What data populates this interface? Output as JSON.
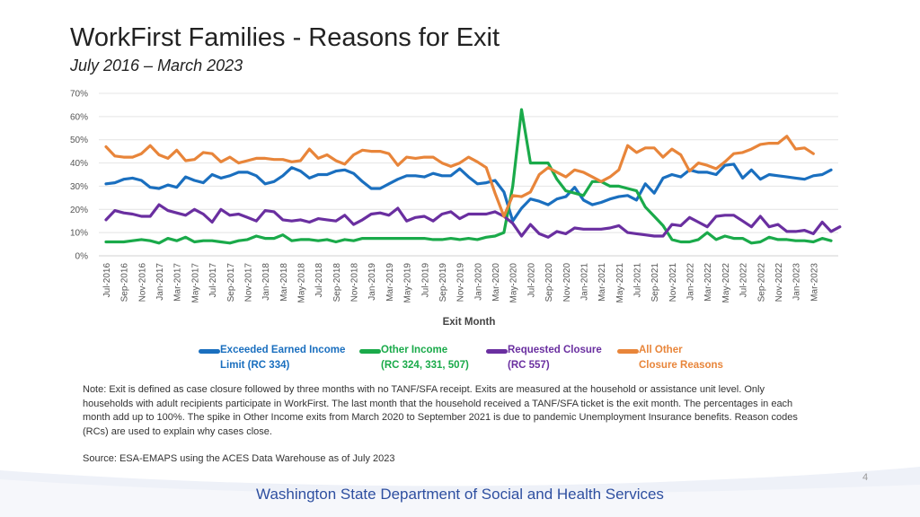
{
  "header": {
    "title": "WorkFirst Families - Reasons for Exit",
    "subtitle": "July 2016 – March 2023"
  },
  "chart_data": {
    "type": "line",
    "ylim": [
      0,
      70
    ],
    "yticks": [
      "0%",
      "10%",
      "20%",
      "30%",
      "40%",
      "50%",
      "60%",
      "70%"
    ],
    "ytick_values": [
      0,
      10,
      20,
      30,
      40,
      50,
      60,
      70
    ],
    "xlabel": "Exit Month",
    "ylabel": "",
    "x_tick_labels": [
      "Jul-2016",
      "Sep-2016",
      "Nov-2016",
      "Jan-2017",
      "Mar-2017",
      "May-2017",
      "Jul-2017",
      "Sep-2017",
      "Nov-2017",
      "Jan-2018",
      "Mar-2018",
      "May-2018",
      "Jul-2018",
      "Sep-2018",
      "Nov-2018",
      "Jan-2019",
      "Mar-2019",
      "May-2019",
      "Jul-2019",
      "Sep-2019",
      "Nov-2019",
      "Jan-2020",
      "Mar-2020",
      "May-2020",
      "Jul-2020",
      "Sep-2020",
      "Nov-2020",
      "Jan-2021",
      "Mar-2021",
      "May-2021",
      "Jul-2021",
      "Sep-2021",
      "Nov-2021",
      "Jan-2022",
      "Mar-2022",
      "May-2022",
      "Jul-2022",
      "Sep-2022",
      "Nov-2022",
      "Jan-2023",
      "Mar-2023"
    ],
    "series": [
      {
        "name": "Exceeded Earned Income Limit (RC 334)",
        "color": "#1a6fbf",
        "values": [
          31,
          31.5,
          33,
          33.5,
          32.5,
          29.5,
          29,
          30.5,
          29.5,
          34,
          32.5,
          31.5,
          35,
          33.5,
          34.5,
          36,
          36,
          34.5,
          31,
          32,
          34.5,
          38,
          36.5,
          33.5,
          35,
          35,
          36.5,
          37,
          35.5,
          32,
          29,
          29,
          31,
          33,
          34.5,
          34.5,
          34,
          35.5,
          34.5,
          34.5,
          37.5,
          34,
          31,
          31.5,
          32.5,
          27.5,
          15,
          20.5,
          24.5,
          23.5,
          22,
          24.5,
          25.5,
          29.5,
          24,
          22,
          23,
          24.5,
          25.5,
          26,
          24,
          31,
          27,
          33.5,
          35,
          34,
          37,
          36,
          36,
          35,
          39,
          39.5,
          33.5,
          37,
          33,
          35,
          34.5,
          34,
          33.5,
          33,
          34.5,
          35,
          37
        ]
      },
      {
        "name": "Other Income (RC 324, 331, 507)",
        "color": "#1aaa4a",
        "values": [
          6,
          6,
          6,
          6.5,
          7,
          6.5,
          5.5,
          7.5,
          6.5,
          8,
          6,
          6.5,
          6.5,
          6,
          5.5,
          6.5,
          7,
          8.5,
          7.5,
          7.5,
          9,
          6.5,
          7,
          7,
          6.5,
          7,
          6,
          7,
          6.5,
          7.5,
          7.5,
          7.5,
          7.5,
          7.5,
          7.5,
          7.5,
          7.5,
          7,
          7,
          7.5,
          7,
          7.5,
          7,
          8,
          8.5,
          10,
          30,
          63,
          40,
          40,
          40,
          33,
          28,
          27,
          26,
          32,
          32,
          30,
          30,
          29,
          28,
          21,
          17,
          13,
          7,
          6,
          6,
          7,
          10,
          7,
          8.5,
          7.5,
          7.5,
          5.5,
          6,
          8,
          7,
          7,
          6.5,
          6.5,
          6,
          7.5,
          6.5
        ]
      },
      {
        "name": "Requested Closure (RC 557)",
        "color": "#6a2fa0",
        "values": [
          15.5,
          19.5,
          18.5,
          18,
          17,
          17,
          22,
          19.5,
          18.5,
          17.5,
          20,
          18,
          14.5,
          20,
          17.5,
          18,
          16.5,
          15,
          19.5,
          19,
          15.5,
          15,
          15.5,
          14.5,
          16,
          15.5,
          15,
          17.5,
          13.5,
          15.5,
          18,
          18.5,
          17.5,
          20.5,
          15,
          16.5,
          17,
          15,
          18,
          19,
          16,
          18,
          18,
          18,
          19,
          17,
          14,
          8.5,
          13.5,
          9.5,
          8,
          10.5,
          9.5,
          12,
          11.5,
          11.5,
          11.5,
          12,
          13,
          10,
          9.5,
          9,
          8.5,
          8.5,
          13.5,
          13,
          16.5,
          14.5,
          12.5,
          17,
          17.5,
          17.5,
          15,
          12.5,
          17,
          12.5,
          13.5,
          10.5,
          10.5,
          11,
          9.5,
          14.5,
          10.5,
          12.5
        ]
      },
      {
        "name": "All Other Closure Reasons",
        "color": "#e8853a",
        "values": [
          47,
          43,
          42.5,
          42.5,
          44,
          47.5,
          43.5,
          42,
          45.5,
          41,
          41.5,
          44.5,
          44,
          40.5,
          42.5,
          40,
          41,
          42,
          42,
          41.5,
          41.5,
          40.5,
          41,
          46,
          42,
          43.5,
          41,
          39.5,
          43.5,
          45.5,
          45,
          45,
          44,
          39,
          42.5,
          42,
          42.5,
          42.5,
          40,
          38.5,
          40,
          42.5,
          40.5,
          38,
          27,
          17,
          26,
          25.5,
          27.5,
          35,
          38,
          36,
          34,
          37,
          36,
          34,
          32,
          34,
          37,
          47.5,
          44.5,
          46.5,
          46.5,
          42.5,
          46,
          43.5,
          36.5,
          40,
          39,
          37.5,
          40.5,
          44,
          44.5,
          46,
          48,
          48.5,
          48.5,
          51.5,
          46,
          46.5,
          44
        ]
      }
    ]
  },
  "legend": [
    {
      "line1": "Exceeded Earned Income",
      "line2": "Limit (RC 334)",
      "color": "#1a6fbf"
    },
    {
      "line1": "Other Income",
      "line2": "(RC 324, 331, 507)",
      "color": "#1aaa4a"
    },
    {
      "line1": "Requested Closure",
      "line2": "(RC 557)",
      "color": "#6a2fa0"
    },
    {
      "line1": "All Other",
      "line2": "Closure Reasons",
      "color": "#e8853a"
    }
  ],
  "note": "Note: Exit is defined as case closure followed by three months with no TANF/SFA receipt. Exits are measured at the household or assistance unit level. Only households with adult recipients participate in WorkFirst. The last month that the household received a TANF/SFA ticket is the exit month. The percentages in each month add up to 100%. The spike in Other Income exits from March 2020 to September 2021 is due to pandemic Unemployment Insurance benefits. Reason codes (RCs) are used to explain why cases close.",
  "source": "Source: ESA-EMAPS using the ACES Data Warehouse as of July 2023",
  "footer": {
    "org": "Washington State Department of Social and Health Services",
    "page": "4"
  }
}
